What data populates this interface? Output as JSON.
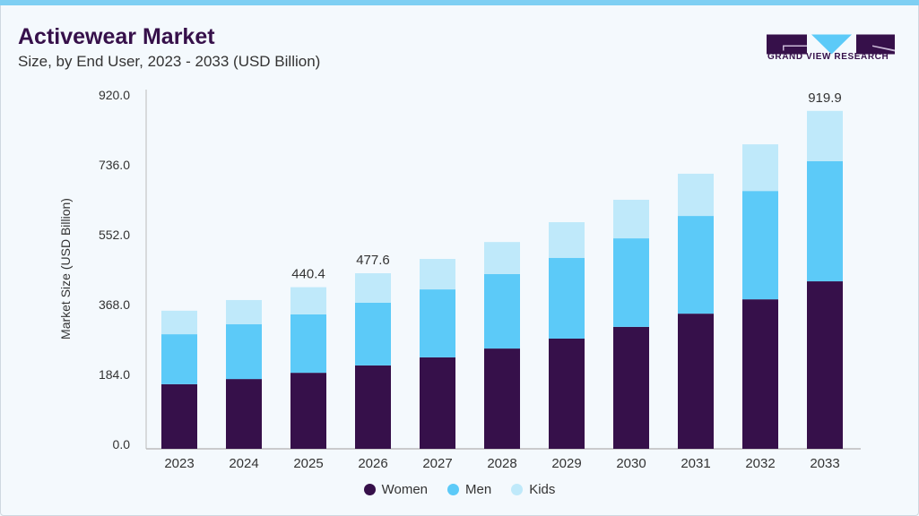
{
  "header": {
    "title": "Activewear Market",
    "subtitle": "Size, by End User, 2023 - 2033 (USD Billion)"
  },
  "logo": {
    "text": "GRAND VIEW RESEARCH"
  },
  "chart_data": {
    "type": "bar",
    "stacked": true,
    "title": "Activewear Market",
    "subtitle": "Size, by End User, 2023 - 2033 (USD Billion)",
    "xlabel": "",
    "ylabel": "Market Size (USD Billion)",
    "ylim": [
      0,
      920
    ],
    "yticks": [
      "0.0",
      "184.0",
      "368.0",
      "552.0",
      "736.0",
      "920.0"
    ],
    "categories": [
      "2023",
      "2024",
      "2025",
      "2026",
      "2027",
      "2028",
      "2029",
      "2030",
      "2031",
      "2032",
      "2033"
    ],
    "series": [
      {
        "name": "Women",
        "color": "#36104a",
        "values": [
          176,
          190,
          207,
          227,
          249,
          273,
          300,
          332,
          368,
          407,
          456
        ]
      },
      {
        "name": "Men",
        "color": "#5ccaf8",
        "values": [
          136,
          149,
          159,
          171,
          185,
          203,
          220,
          241,
          266,
          295,
          327
        ]
      },
      {
        "name": "Kids",
        "color": "#bfe9fa",
        "values": [
          64,
          66,
          74,
          80,
          83,
          87,
          97,
          105,
          115,
          127,
          137
        ]
      }
    ],
    "data_labels": {
      "2025": "440.4",
      "2026": "477.6",
      "2033": "919.9"
    },
    "grid": false,
    "legend_position": "bottom"
  }
}
